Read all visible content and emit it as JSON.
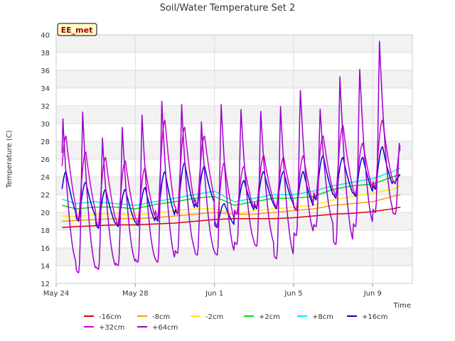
{
  "chart_data": {
    "type": "line",
    "title": "Soil/Water Temperature Set 2",
    "xlabel": "Time",
    "ylabel": "Temperature (C)",
    "ylim": [
      12,
      40
    ],
    "xlim_days": [
      0,
      18
    ],
    "y_ticks": [
      12,
      14,
      16,
      18,
      20,
      22,
      24,
      26,
      28,
      30,
      32,
      34,
      36,
      38,
      40
    ],
    "x_ticks": [
      {
        "label": "May 24",
        "day": 0
      },
      {
        "label": "May 28",
        "day": 4
      },
      {
        "label": "Jun 1",
        "day": 8
      },
      {
        "label": "Jun 5",
        "day": 12
      },
      {
        "label": "Jun 9",
        "day": 16
      }
    ],
    "grid": true,
    "band_shading": true,
    "legend_position": "bottom",
    "station_badge": "EE_met",
    "series": [
      {
        "name": "-16cm",
        "color": "#dd0000",
        "x": [
          0.3,
          1,
          2,
          3,
          4,
          5,
          6,
          7,
          8,
          9,
          10,
          11,
          12,
          13,
          14,
          15,
          16,
          17,
          17.4
        ],
        "y": [
          18.3,
          18.4,
          18.5,
          18.6,
          18.6,
          18.7,
          18.8,
          19.0,
          19.2,
          19.3,
          19.3,
          19.3,
          19.4,
          19.6,
          19.8,
          19.9,
          20.1,
          20.4,
          20.6
        ]
      },
      {
        "name": "-8cm",
        "color": "#ff9900",
        "x": [
          0.3,
          1,
          2,
          3,
          4,
          5,
          6,
          7,
          8,
          9,
          10,
          11,
          12,
          13,
          14,
          15,
          16,
          17,
          17.4
        ],
        "y": [
          19.0,
          19.1,
          19.2,
          19.3,
          19.3,
          19.4,
          19.6,
          19.8,
          20.0,
          19.8,
          19.8,
          20.0,
          20.2,
          20.4,
          20.8,
          21.0,
          21.2,
          21.8,
          22.0
        ]
      },
      {
        "name": "-2cm",
        "color": "#ffee00",
        "x": [
          0.3,
          1,
          2,
          3,
          4,
          5,
          6,
          7,
          8,
          9,
          10,
          11,
          12,
          13,
          14,
          15,
          16,
          17,
          17.4
        ],
        "y": [
          19.6,
          19.5,
          19.8,
          19.9,
          19.7,
          19.9,
          20.2,
          20.4,
          20.4,
          19.8,
          20.2,
          20.4,
          20.6,
          20.8,
          21.4,
          21.8,
          22.2,
          22.6,
          23.0
        ]
      },
      {
        "name": "+2cm",
        "color": "#00dd00",
        "x": [
          0.3,
          1,
          2,
          3,
          4,
          5,
          6,
          7,
          8,
          9,
          10,
          11,
          12,
          13,
          14,
          15,
          16,
          17,
          17.4
        ],
        "y": [
          20.8,
          20.4,
          20.6,
          20.6,
          20.4,
          20.9,
          21.2,
          21.6,
          21.8,
          20.8,
          21.2,
          21.6,
          21.6,
          21.8,
          22.6,
          23.0,
          23.2,
          24.0,
          24.3
        ]
      },
      {
        "name": "+8cm",
        "color": "#00eeee",
        "x": [
          0.3,
          1,
          2,
          3,
          4,
          5,
          6,
          7,
          8,
          9,
          10,
          11,
          12,
          13,
          14,
          15,
          16,
          17,
          17.4
        ],
        "y": [
          21.5,
          21.0,
          21.2,
          21.0,
          20.8,
          21.2,
          21.6,
          22.0,
          22.4,
          21.2,
          21.6,
          22.0,
          22.0,
          22.4,
          23.0,
          23.4,
          23.8,
          24.6,
          25.0
        ]
      },
      {
        "name": "+16cm",
        "color": "#0000cc",
        "diurnal": true,
        "day_min": [
          19.4,
          19.0,
          18.2,
          18.4,
          18.5,
          19.0,
          19.8,
          20.6,
          18.3,
          19.8,
          20.4,
          20.4,
          20.2,
          21.4,
          21.6,
          21.8,
          22.6,
          23.4
        ],
        "day_max": [
          24.6,
          23.4,
          22.6,
          22.6,
          22.8,
          24.6,
          25.6,
          25.2,
          21.0,
          23.6,
          24.6,
          24.6,
          24.6,
          26.4,
          26.2,
          26.2,
          27.4,
          24.4
        ]
      },
      {
        "name": "+32cm",
        "color": "#cc00cc",
        "diurnal": true,
        "day_min": [
          19.6,
          19.2,
          18.4,
          18.6,
          18.8,
          19.2,
          19.8,
          20.8,
          18.4,
          19.8,
          20.6,
          20.6,
          20.2,
          21.6,
          21.8,
          22.0,
          22.8,
          23.2
        ],
        "day_max": [
          28.6,
          26.8,
          26.2,
          25.8,
          25.0,
          30.4,
          29.6,
          28.6,
          25.6,
          25.2,
          26.4,
          26.2,
          26.4,
          28.6,
          29.8,
          27.8,
          30.4,
          28.2
        ]
      },
      {
        "name": "+64cm",
        "color": "#9900cc",
        "diurnal": true,
        "spiky": true,
        "day_min": [
          14.0,
          13.2,
          13.6,
          14.0,
          14.4,
          14.4,
          15.4,
          15.2,
          15.2,
          16.4,
          16.2,
          14.8,
          17.4,
          18.4,
          16.4,
          18.4,
          20.0,
          19.8
        ],
        "day_max": [
          31.0,
          31.8,
          28.8,
          30.0,
          31.4,
          33.0,
          32.6,
          30.6,
          32.6,
          32.0,
          31.8,
          32.4,
          34.2,
          32.0,
          35.8,
          36.6,
          39.8,
          28.0
        ]
      }
    ]
  }
}
